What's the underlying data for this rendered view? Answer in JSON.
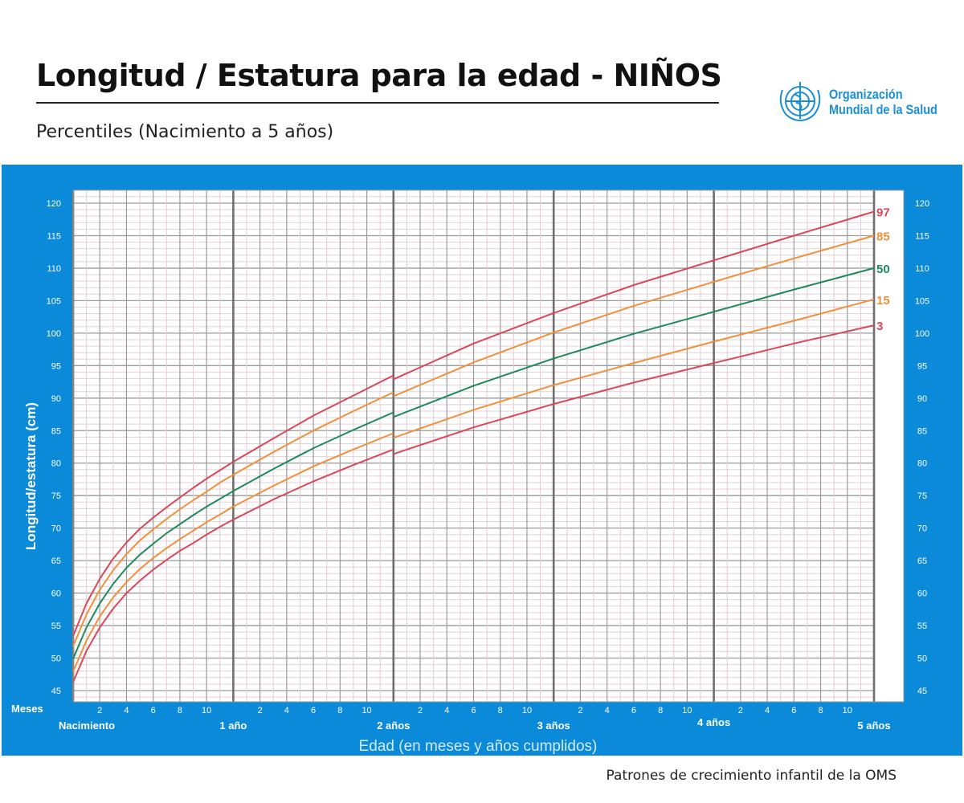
{
  "header": {
    "title": "Longitud / Estatura para la edad - NIÑOS",
    "subtitle": "Percentiles (Nacimiento a 5 años)",
    "logo_text_line1": "Organización",
    "logo_text_line2": "Mundial de la Salud"
  },
  "footer": "Patrones de crecimiento infantil de la OMS",
  "colors": {
    "panel": "#0a8ad8",
    "p97": "#d9475a",
    "p85": "#f0903c",
    "p50": "#1e8a5c",
    "p15": "#f0903c",
    "p3": "#d9475a"
  },
  "chart_data": {
    "type": "line",
    "xlabel": "Edad (en meses y años cumplidos)",
    "ylabel": "Longitud/estatura (cm)",
    "xlim": [
      0,
      60
    ],
    "ylim": [
      43.3,
      122
    ],
    "grid": true,
    "months_label": "Meses",
    "month_ticks": [
      "2",
      "4",
      "6",
      "8",
      "10"
    ],
    "year_labels": [
      "Nacimiento",
      "1 año",
      "2 años",
      "3 años",
      "4 años",
      "5 años"
    ],
    "y_ticks": [
      45,
      50,
      55,
      60,
      65,
      70,
      75,
      80,
      85,
      90,
      95,
      100,
      105,
      110,
      115,
      120
    ],
    "series": [
      {
        "name": "97",
        "color": "#d9475a",
        "segments": [
          {
            "x": [
              0,
              1,
              2,
              3,
              4,
              5,
              6,
              7,
              8,
              9,
              10,
              11,
              12,
              15,
              18,
              21,
              24
            ],
            "y": [
              53.4,
              58.4,
              62.2,
              65.3,
              67.8,
              69.9,
              71.6,
              73.2,
              74.7,
              76.2,
              77.6,
              78.9,
              80.2,
              83.8,
              87.3,
              90.4,
              93.5
            ]
          },
          {
            "x": [
              24,
              30,
              36,
              42,
              48,
              54,
              60
            ],
            "y": [
              92.9,
              98.4,
              103.1,
              107.4,
              111.2,
              115.0,
              118.7
            ]
          }
        ]
      },
      {
        "name": "85",
        "color": "#f0903c",
        "segments": [
          {
            "x": [
              0,
              1,
              2,
              3,
              4,
              5,
              6,
              7,
              8,
              9,
              10,
              11,
              12,
              15,
              18,
              21,
              24
            ],
            "y": [
              51.8,
              56.7,
              60.5,
              63.5,
              66.0,
              68.1,
              69.8,
              71.4,
              72.9,
              74.3,
              75.6,
              77.0,
              78.2,
              81.7,
              85.0,
              88.0,
              90.9
            ]
          },
          {
            "x": [
              24,
              30,
              36,
              42,
              48,
              54,
              60
            ],
            "y": [
              90.3,
              95.5,
              100.1,
              104.2,
              107.9,
              111.5,
              115.0
            ]
          }
        ]
      },
      {
        "name": "50",
        "color": "#1e8a5c",
        "segments": [
          {
            "x": [
              0,
              1,
              2,
              3,
              4,
              5,
              6,
              7,
              8,
              9,
              10,
              11,
              12,
              15,
              18,
              21,
              24
            ],
            "y": [
              49.9,
              54.7,
              58.4,
              61.4,
              63.9,
              65.9,
              67.6,
              69.2,
              70.6,
              72.0,
              73.3,
              74.5,
              75.7,
              79.1,
              82.3,
              85.1,
              87.8
            ]
          },
          {
            "x": [
              24,
              30,
              36,
              42,
              48,
              54,
              60
            ],
            "y": [
              87.1,
              91.9,
              96.1,
              99.9,
              103.3,
              106.7,
              110.0
            ]
          }
        ]
      },
      {
        "name": "15",
        "color": "#f0903c",
        "segments": [
          {
            "x": [
              0,
              1,
              2,
              3,
              4,
              5,
              6,
              7,
              8,
              9,
              10,
              11,
              12,
              15,
              18,
              21,
              24
            ],
            "y": [
              47.9,
              52.7,
              56.4,
              59.3,
              61.7,
              63.7,
              65.4,
              66.9,
              68.3,
              69.6,
              70.9,
              72.1,
              73.3,
              76.5,
              79.5,
              82.1,
              84.6
            ]
          },
          {
            "x": [
              24,
              30,
              36,
              42,
              48,
              54,
              60
            ],
            "y": [
              83.9,
              88.2,
              92.0,
              95.4,
              98.7,
              101.9,
              105.2
            ]
          }
        ]
      },
      {
        "name": "3",
        "color": "#d9475a",
        "segments": [
          {
            "x": [
              0,
              1,
              2,
              3,
              4,
              5,
              6,
              7,
              8,
              9,
              10,
              11,
              12,
              15,
              18,
              21,
              24
            ],
            "y": [
              46.3,
              51.1,
              54.7,
              57.6,
              60.0,
              61.9,
              63.6,
              65.1,
              66.5,
              67.7,
              69.0,
              70.2,
              71.3,
              74.4,
              77.2,
              79.7,
              82.1
            ]
          },
          {
            "x": [
              24,
              30,
              36,
              42,
              48,
              54,
              60
            ],
            "y": [
              81.4,
              85.5,
              89.1,
              92.4,
              95.4,
              98.4,
              101.2
            ]
          }
        ]
      }
    ]
  }
}
